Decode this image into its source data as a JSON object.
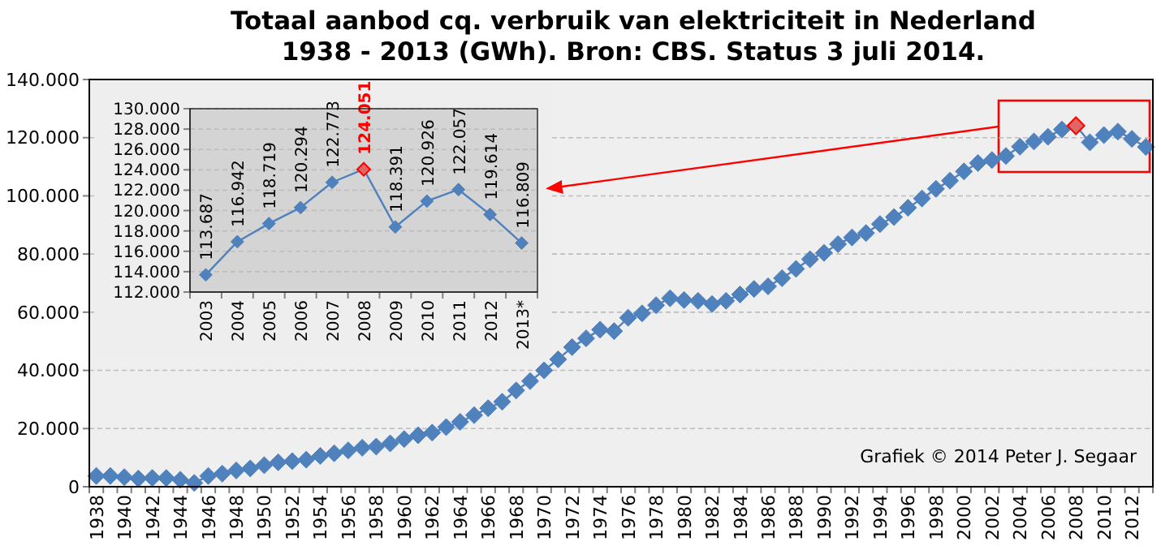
{
  "chart_data": [
    {
      "type": "line",
      "title": "Totaal aanbod cq. verbruik van elektriciteit  in  Nederland\n1938 - 2013 (GWh). Bron: CBS. Status 3 juli 2014.",
      "categories": [
        "1938",
        null,
        "1940",
        null,
        "1942",
        null,
        "1944",
        null,
        "1946",
        null,
        "1948",
        null,
        "1950",
        null,
        "1952",
        null,
        "1954",
        null,
        "1956",
        null,
        "1958",
        null,
        "1960",
        null,
        "1962",
        null,
        "1964",
        null,
        "1966",
        null,
        "1968",
        null,
        "1970",
        null,
        "1972",
        null,
        "1974",
        null,
        "1976",
        null,
        "1978",
        null,
        "1980",
        null,
        "1982",
        null,
        "1984",
        null,
        "1986",
        null,
        "1988",
        null,
        "1990",
        null,
        "1992",
        null,
        "1994",
        null,
        "1996",
        null,
        "1998",
        null,
        "2000",
        null,
        "2002",
        null,
        "2004",
        null,
        "2006",
        null,
        "2008",
        null,
        "2010",
        null,
        "2012",
        null
      ],
      "series": [
        {
          "color": "#4f81bd",
          "colors": [
            "#4f81bd",
            "#4f81bd",
            "#4f81bd",
            "#4f81bd",
            "#4f81bd",
            "#4f81bd",
            "#4f81bd",
            "#4f81bd",
            "#4f81bd",
            "#4f81bd",
            "#4f81bd",
            "#4f81bd",
            "#4f81bd",
            "#4f81bd",
            "#4f81bd",
            "#4f81bd",
            "#4f81bd",
            "#4f81bd",
            "#4f81bd",
            "#4f81bd",
            "#4f81bd",
            "#4f81bd",
            "#4f81bd",
            "#4f81bd",
            "#4f81bd",
            "#4f81bd",
            "#4f81bd",
            "#4f81bd",
            "#4f81bd",
            "#4f81bd",
            "#4f81bd",
            "#4f81bd",
            "#4f81bd",
            "#4f81bd",
            "#4f81bd",
            "#4f81bd",
            "#4f81bd",
            "#4f81bd",
            "#4f81bd",
            "#4f81bd",
            "#4f81bd",
            "#4f81bd",
            "#4f81bd",
            "#4f81bd",
            "#4f81bd",
            "#4f81bd",
            "#4f81bd",
            "#4f81bd",
            "#4f81bd",
            "#4f81bd",
            "#4f81bd",
            "#4f81bd",
            "#4f81bd",
            "#4f81bd",
            "#4f81bd",
            "#4f81bd",
            "#4f81bd",
            "#4f81bd",
            "#4f81bd",
            "#4f81bd",
            "#4f81bd",
            "#4f81bd",
            "#4f81bd",
            "#4f81bd",
            "#4f81bd",
            "#4f81bd",
            "#4f81bd",
            "#4f81bd",
            "#4f81bd",
            "#4f81bd",
            "#e06666",
            "#4f81bd",
            "#4f81bd",
            "#4f81bd",
            "#4f81bd",
            "#4f81bd"
          ],
          "values": [
            3700,
            3700,
            3300,
            2800,
            3000,
            3000,
            2400,
            1300,
            3700,
            4500,
            5600,
            6300,
            7400,
            8400,
            8800,
            9300,
            10600,
            11500,
            12500,
            13400,
            13800,
            14900,
            16400,
            17700,
            18600,
            20500,
            22300,
            24600,
            27000,
            29200,
            33100,
            36300,
            40000,
            43800,
            48000,
            51000,
            54000,
            53500,
            58100,
            59600,
            62400,
            64800,
            64200,
            63900,
            62800,
            63900,
            66100,
            68000,
            68900,
            71700,
            74900,
            78200,
            80400,
            83400,
            85700,
            87200,
            90300,
            92700,
            95900,
            99100,
            102400,
            105200,
            108400,
            111300,
            112300,
            113700,
            116900,
            118700,
            120300,
            122800,
            124100,
            118400,
            120900,
            122100,
            119600,
            116800
          ]
        }
      ],
      "ylim": [
        0,
        140000
      ],
      "yticks": [
        {
          "value": 0,
          "label": "0"
        },
        {
          "value": 20000,
          "label": "20.000"
        },
        {
          "value": 40000,
          "label": "40.000"
        },
        {
          "value": 60000,
          "label": "60.000"
        },
        {
          "value": 80000,
          "label": "80.000"
        },
        {
          "value": 100000,
          "label": "100.000"
        },
        {
          "value": 120000,
          "label": "120.000"
        },
        {
          "value": 140000,
          "label": "140.000"
        }
      ],
      "grid": "y",
      "marker": "diamond",
      "annotations": [
        "Grafiek © 2014 Peter J. Segaar"
      ]
    },
    {
      "type": "line",
      "categories": [
        "2003",
        "2004",
        "2005",
        "2006",
        "2007",
        "2008",
        "2009",
        "2010",
        "2011",
        "2012",
        "2013*"
      ],
      "series": [
        {
          "color": "#4f81bd",
          "colors": [
            "#4f81bd",
            "#4f81bd",
            "#4f81bd",
            "#4f81bd",
            "#4f81bd",
            "#e06666",
            "#4f81bd",
            "#4f81bd",
            "#4f81bd",
            "#4f81bd",
            "#4f81bd"
          ],
          "values": [
            113687,
            116942,
            118719,
            120294,
            122773,
            124051,
            118391,
            120926,
            122057,
            119614,
            116809
          ],
          "value_labels": [
            "113.687",
            "116.942",
            "118.719",
            "120.294",
            "122.773",
            "124.051",
            "118.391",
            "120.926",
            "122.057",
            "119.614",
            "116.809"
          ]
        }
      ],
      "ylim": [
        112000,
        130000
      ],
      "yticks": [
        {
          "value": 112000,
          "label": "112.000"
        },
        {
          "value": 114000,
          "label": "114.000"
        },
        {
          "value": 116000,
          "label": "116.000"
        },
        {
          "value": 118000,
          "label": "118.000"
        },
        {
          "value": 120000,
          "label": "120.000"
        },
        {
          "value": 122000,
          "label": "122.000"
        },
        {
          "value": 124000,
          "label": "124.000"
        },
        {
          "value": 126000,
          "label": "126.000"
        },
        {
          "value": 128000,
          "label": "128.000"
        },
        {
          "value": 130000,
          "label": "130.000"
        }
      ],
      "grid": "y",
      "marker": "diamond"
    }
  ]
}
